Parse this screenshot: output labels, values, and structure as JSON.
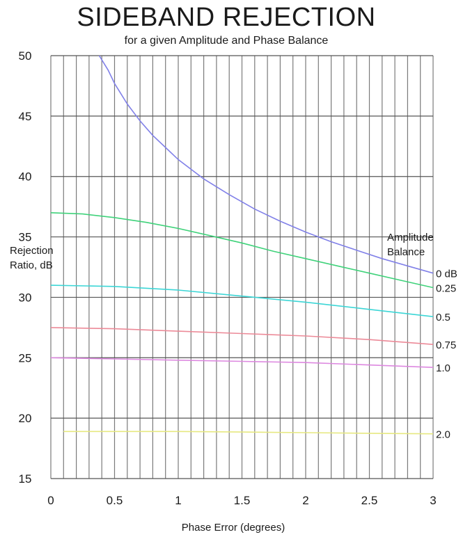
{
  "chart_data": {
    "type": "line",
    "title": "SIDEBAND REJECTION",
    "subtitle": "for a given Amplitude and Phase Balance",
    "xlabel": "Phase Error (degrees)",
    "ylabel": [
      "Rejection",
      "Ratio, dB"
    ],
    "xlim": [
      0,
      3
    ],
    "ylim": [
      15,
      50
    ],
    "xticks": [
      0,
      0.5,
      1,
      1.5,
      2,
      2.5,
      3
    ],
    "yticks": [
      15,
      20,
      25,
      30,
      35,
      40,
      45,
      50
    ],
    "grid": true,
    "legend_title": [
      "Amplitude",
      "Balance"
    ],
    "series": [
      {
        "name": "0 dB",
        "color": "#8080e8",
        "x": [
          0.38,
          0.45,
          0.5,
          0.6,
          0.7,
          0.8,
          0.9,
          1.0,
          1.2,
          1.4,
          1.6,
          1.8,
          2.0,
          2.2,
          2.4,
          2.6,
          2.8,
          3.0
        ],
        "y": [
          50.0,
          48.8,
          47.7,
          46.0,
          44.6,
          43.4,
          42.4,
          41.4,
          39.8,
          38.5,
          37.3,
          36.3,
          35.4,
          34.6,
          33.9,
          33.2,
          32.6,
          32.0
        ]
      },
      {
        "name": "0.25",
        "color": "#3fd27a",
        "x": [
          0,
          0.25,
          0.5,
          0.75,
          1.0,
          1.25,
          1.5,
          1.75,
          2.0,
          2.25,
          2.5,
          2.75,
          3.0
        ],
        "y": [
          37.0,
          36.9,
          36.6,
          36.2,
          35.7,
          35.1,
          34.5,
          33.8,
          33.2,
          32.6,
          32.0,
          31.4,
          30.8
        ]
      },
      {
        "name": "0.5",
        "color": "#3cd6d6",
        "x": [
          0,
          0.5,
          1.0,
          1.5,
          2.0,
          2.5,
          3.0
        ],
        "y": [
          31.0,
          30.9,
          30.6,
          30.1,
          29.6,
          29.0,
          28.4
        ]
      },
      {
        "name": "0.75",
        "color": "#ec8a98",
        "x": [
          0,
          0.5,
          1.0,
          1.5,
          2.0,
          2.5,
          3.0
        ],
        "y": [
          27.5,
          27.4,
          27.2,
          27.0,
          26.8,
          26.5,
          26.1
        ]
      },
      {
        "name": "1.0",
        "color": "#dd88e0",
        "x": [
          0,
          0.5,
          1.0,
          1.5,
          2.0,
          2.5,
          3.0
        ],
        "y": [
          25.0,
          24.9,
          24.8,
          24.7,
          24.6,
          24.4,
          24.2
        ]
      },
      {
        "name": "2.0",
        "color": "#e6e880",
        "x": [
          0.1,
          0.5,
          1.0,
          1.5,
          2.0,
          2.5,
          3.0
        ],
        "y": [
          18.9,
          18.9,
          18.9,
          18.85,
          18.8,
          18.75,
          18.7
        ]
      }
    ]
  }
}
